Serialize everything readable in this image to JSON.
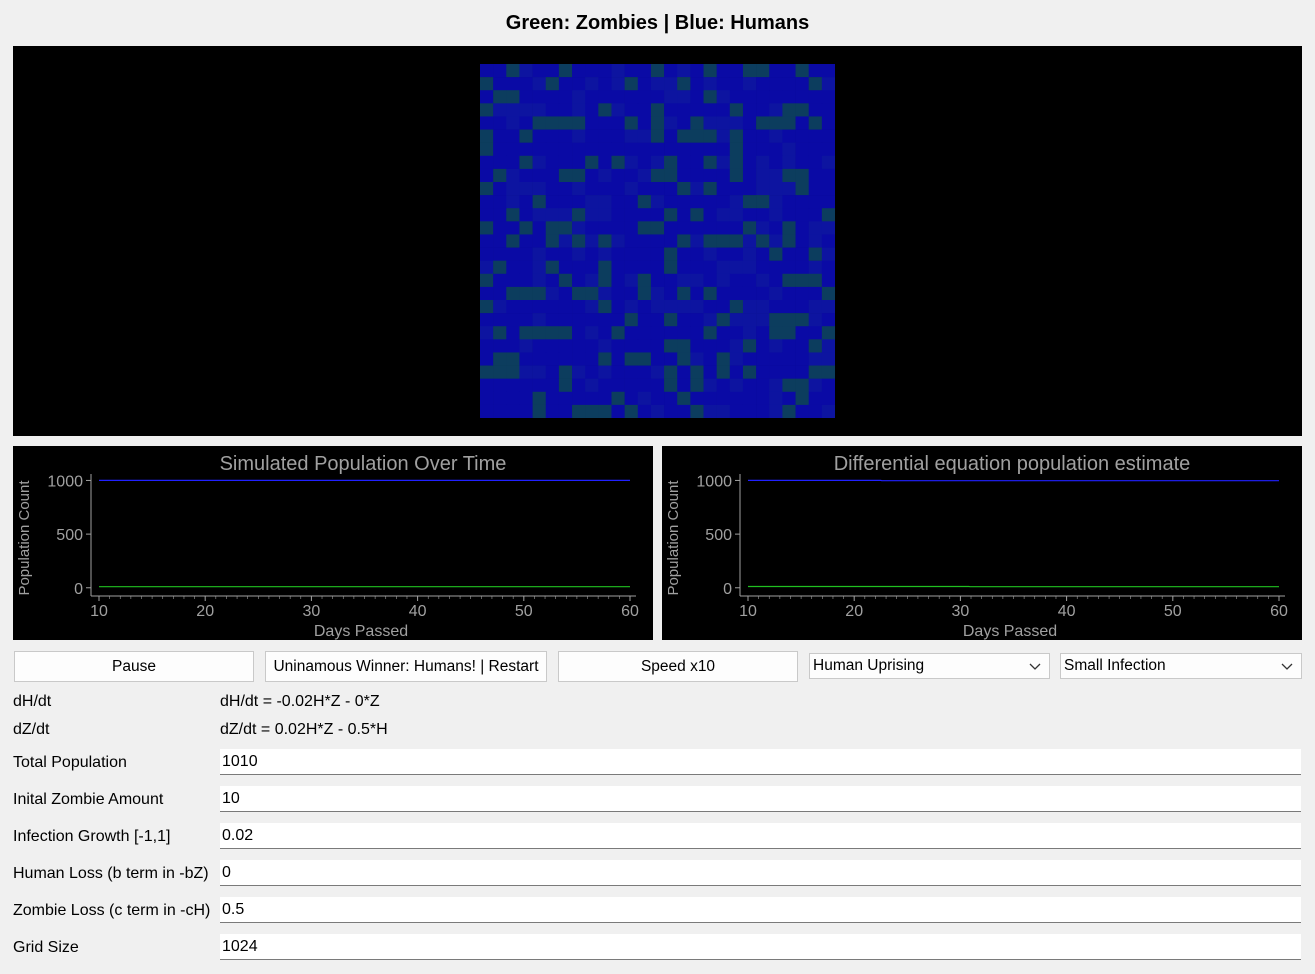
{
  "window": {
    "title": "Green: Zombies | Blue: Humans"
  },
  "simulation": {
    "grid_cols": 27,
    "grid_rows": 27,
    "colors": {
      "human": "#0a0aa5",
      "human_dim": "#0d14a0",
      "zombie": "#0c3d5e",
      "background": "#000000"
    }
  },
  "plots": [
    {
      "chart_data": {
        "type": "line",
        "title": "Simulated Population Over Time",
        "xlabel": "Days Passed",
        "ylabel": "Population Count",
        "xlim": [
          10,
          60
        ],
        "ylim": [
          -30,
          1060
        ],
        "xticks": [
          "10",
          "20",
          "30",
          "40",
          "50",
          "60"
        ],
        "yticks": [
          "0",
          "500",
          "1000"
        ],
        "grid": false,
        "series": [
          {
            "color": "#2020ff",
            "x": [
              10,
              60
            ],
            "y": [
              1000,
              1000
            ]
          },
          {
            "color": "#20c020",
            "x": [
              10,
              60
            ],
            "y": [
              10,
              10
            ]
          }
        ]
      }
    },
    {
      "chart_data": {
        "type": "line",
        "title": "Differential equation population estimate",
        "xlabel": "Days Passed",
        "ylabel": "Population Count",
        "xlim": [
          10,
          60
        ],
        "ylim": [
          -30,
          1060
        ],
        "xticks": [
          "10",
          "20",
          "30",
          "40",
          "50",
          "60"
        ],
        "yticks": [
          "0",
          "500",
          "1000"
        ],
        "grid": false,
        "series": [
          {
            "color": "#2020ff",
            "x": [
              10,
              22.5,
              22.6,
              60
            ],
            "y": [
              1000,
              1000,
              998,
              998
            ]
          },
          {
            "color": "#20c020",
            "x": [
              10,
              30.8,
              30.9,
              60
            ],
            "y": [
              12,
              12,
              10,
              10
            ]
          }
        ]
      }
    }
  ],
  "controls": {
    "pause_label": "Pause",
    "restart_label": "Uninamous Winner: Humans! | Restart",
    "speed_label": "Speed x10",
    "scenario_select": "Human Uprising",
    "infection_select": "Small Infection"
  },
  "equations": {
    "dh_label": "dH/dt",
    "dh_value": "dH/dt = -0.02H*Z - 0*Z",
    "dz_label": "dZ/dt",
    "dz_value": "dZ/dt = 0.02H*Z - 0.5*H"
  },
  "params": [
    {
      "label": "Total Population",
      "value": "1010"
    },
    {
      "label": "Inital Zombie Amount",
      "value": "10"
    },
    {
      "label": "Infection Growth [-1,1]",
      "value": "0.02"
    },
    {
      "label": "Human Loss (b term in -bZ)",
      "value": "0"
    },
    {
      "label": "Zombie Loss (c term in -cH)",
      "value": "0.5"
    },
    {
      "label": "Grid Size",
      "value": "1024"
    }
  ]
}
